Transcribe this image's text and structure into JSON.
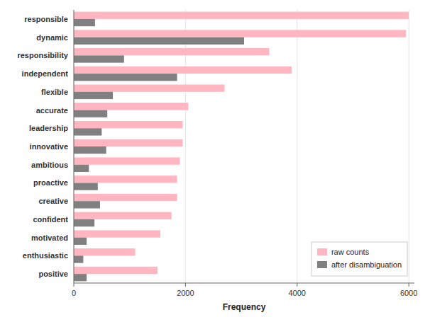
{
  "chart_data": {
    "type": "bar",
    "orientation": "horizontal",
    "categories": [
      "responsible",
      "dynamic",
      "responsibility",
      "independent",
      "flexible",
      "accurate",
      "leadership",
      "innovative",
      "ambitious",
      "proactive",
      "creative",
      "confident",
      "motivated",
      "enthusiastic",
      "positive"
    ],
    "series": [
      {
        "name": "raw counts",
        "color": "#ffb6c1",
        "values": [
          6000,
          5950,
          3500,
          3900,
          2700,
          2050,
          1950,
          1950,
          1900,
          1850,
          1850,
          1750,
          1550,
          1100,
          1500
        ]
      },
      {
        "name": "after disambiguation",
        "color": "#808080",
        "values": [
          380,
          3050,
          900,
          1850,
          700,
          600,
          500,
          580,
          270,
          430,
          470,
          370,
          230,
          170,
          230
        ]
      }
    ],
    "xlabel": "Frequency",
    "xlim": [
      0,
      6100
    ],
    "xticks": [
      0,
      2000,
      4000,
      6000
    ],
    "grid": true,
    "legend": "lower right"
  }
}
